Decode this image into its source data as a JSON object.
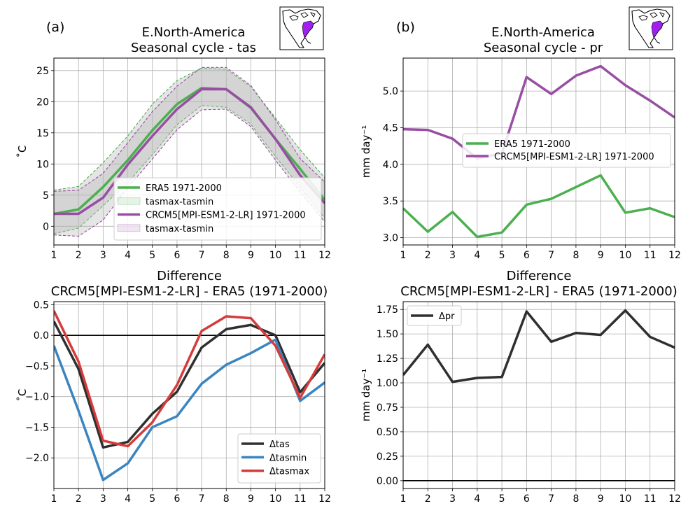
{
  "panel_labels": [
    "(a)",
    "(b)"
  ],
  "colors": {
    "era5": "#4caf50",
    "crcm5": "#984ea3",
    "delta_tas": "#2f2f2f",
    "delta_tasmin": "#3a85c0",
    "delta_tasmax": "#d63b3b",
    "delta_pr": "#2f2f2f",
    "grid": "#b0b0b0",
    "map_region": "#a020f0"
  },
  "chart_data": [
    {
      "id": "tas-cycle",
      "type": "line",
      "title": [
        "E.North-America",
        "Seasonal cycle - tas"
      ],
      "ylabel": "˚C",
      "x": [
        1,
        2,
        3,
        4,
        5,
        6,
        7,
        8,
        9,
        10,
        11,
        12
      ],
      "xticks": [
        "1",
        "2",
        "3",
        "4",
        "5",
        "6",
        "7",
        "8",
        "9",
        "10",
        "11",
        "12"
      ],
      "xlim": [
        1,
        12
      ],
      "ylim": [
        -3,
        27
      ],
      "yticks": [
        "0",
        "5",
        "10",
        "15",
        "20",
        "25"
      ],
      "grid": true,
      "legend_position": "lower-right",
      "inset_map": "north-america-region-map",
      "series": [
        {
          "name": "ERA5 1971-2000",
          "values": [
            2.0,
            2.7,
            6.3,
            10.6,
            15.4,
            19.6,
            22.2,
            22.0,
            19.0,
            14.0,
            9.2,
            4.2
          ],
          "band_name": "tasmax-tasmin",
          "tasmax": [
            5.8,
            6.4,
            10.2,
            14.5,
            19.6,
            23.4,
            25.4,
            25.2,
            22.4,
            17.4,
            12.3,
            7.8
          ],
          "tasmin": [
            -1.2,
            -0.3,
            3.3,
            7.0,
            11.5,
            16.3,
            19.4,
            19.1,
            16.4,
            11.2,
            6.3,
            1.3
          ]
        },
        {
          "name": "CRCM5[MPI-ESM1-2-LR] 1971-2000",
          "values": [
            2.0,
            2.0,
            4.6,
            9.9,
            14.5,
            18.8,
            22.0,
            22.0,
            19.1,
            14.0,
            8.2,
            3.7
          ],
          "band_name": "tasmax-tasmin",
          "tasmax": [
            5.6,
            5.8,
            8.5,
            13.4,
            18.4,
            22.5,
            25.5,
            25.5,
            22.6,
            17.1,
            10.9,
            7.1
          ],
          "tasmin": [
            -1.4,
            -1.6,
            1.0,
            6.2,
            10.8,
            15.5,
            18.7,
            18.8,
            16.0,
            10.6,
            5.5,
            0.7
          ]
        }
      ]
    },
    {
      "id": "pr-cycle",
      "type": "line",
      "title": [
        "E.North-America",
        "Seasonal cycle - pr"
      ],
      "ylabel": "mm day⁻¹",
      "x": [
        1,
        2,
        3,
        4,
        5,
        6,
        7,
        8,
        9,
        10,
        11,
        12
      ],
      "xticks": [
        "1",
        "2",
        "3",
        "4",
        "5",
        "6",
        "7",
        "8",
        "9",
        "10",
        "11",
        "12"
      ],
      "xlim": [
        1,
        12
      ],
      "ylim": [
        2.9,
        5.45
      ],
      "yticks": [
        "3.0",
        "3.5",
        "4.0",
        "4.5",
        "5.0"
      ],
      "grid": true,
      "legend_position": "center-right",
      "inset_map": "north-america-region-map",
      "series": [
        {
          "name": "ERA5 1971-2000",
          "values": [
            3.4,
            3.08,
            3.35,
            3.01,
            3.07,
            3.45,
            3.53,
            3.69,
            3.85,
            3.34,
            3.4,
            3.28
          ]
        },
        {
          "name": "CRCM5[MPI-ESM1-2-LR] 1971-2000",
          "values": [
            4.48,
            4.47,
            4.35,
            4.08,
            4.15,
            5.19,
            4.96,
            5.21,
            5.34,
            5.08,
            4.87,
            4.64
          ]
        }
      ]
    },
    {
      "id": "tas-diff",
      "type": "line",
      "title": [
        "Difference",
        "CRCM5[MPI-ESM1-2-LR] - ERA5 (1971-2000)"
      ],
      "ylabel": "˚C",
      "x": [
        1,
        2,
        3,
        4,
        5,
        6,
        7,
        8,
        9,
        10,
        11,
        12
      ],
      "xticks": [
        "1",
        "2",
        "3",
        "4",
        "5",
        "6",
        "7",
        "8",
        "9",
        "10",
        "11",
        "12"
      ],
      "xlim": [
        1,
        12
      ],
      "ylim": [
        -2.5,
        0.55
      ],
      "yticks": [
        "−2.0",
        "−1.5",
        "−1.0",
        "−0.5",
        "0.0",
        "0.5"
      ],
      "grid": true,
      "zero_line": true,
      "legend_position": "lower-right",
      "series": [
        {
          "name": "Δtas",
          "values": [
            0.23,
            -0.55,
            -1.83,
            -1.74,
            -1.28,
            -0.92,
            -0.2,
            0.1,
            0.17,
            0.0,
            -0.93,
            -0.45
          ]
        },
        {
          "name": "Δtasmin",
          "values": [
            -0.17,
            -1.23,
            -2.36,
            -2.09,
            -1.5,
            -1.32,
            -0.79,
            -0.48,
            -0.29,
            -0.07,
            -1.07,
            -0.77
          ]
        },
        {
          "name": "Δtasmax",
          "values": [
            0.4,
            -0.43,
            -1.72,
            -1.81,
            -1.42,
            -0.81,
            0.07,
            0.31,
            0.28,
            -0.17,
            -1.02,
            -0.31
          ]
        }
      ]
    },
    {
      "id": "pr-diff",
      "type": "line",
      "title": [
        "Difference",
        "CRCM5[MPI-ESM1-2-LR] - ERA5 (1971-2000)"
      ],
      "ylabel": "mm day⁻¹",
      "x": [
        1,
        2,
        3,
        4,
        5,
        6,
        7,
        8,
        9,
        10,
        11,
        12
      ],
      "xticks": [
        "1",
        "2",
        "3",
        "4",
        "5",
        "6",
        "7",
        "8",
        "9",
        "10",
        "11",
        "12"
      ],
      "xlim": [
        1,
        12
      ],
      "ylim": [
        -0.08,
        1.83
      ],
      "yticks": [
        "0.00",
        "0.25",
        "0.50",
        "0.75",
        "1.00",
        "1.25",
        "1.50",
        "1.75"
      ],
      "grid": true,
      "zero_line": true,
      "legend_position": "upper-left",
      "series": [
        {
          "name": "Δpr",
          "values": [
            1.08,
            1.39,
            1.01,
            1.05,
            1.06,
            1.73,
            1.42,
            1.51,
            1.49,
            1.74,
            1.47,
            1.36
          ]
        }
      ]
    }
  ]
}
